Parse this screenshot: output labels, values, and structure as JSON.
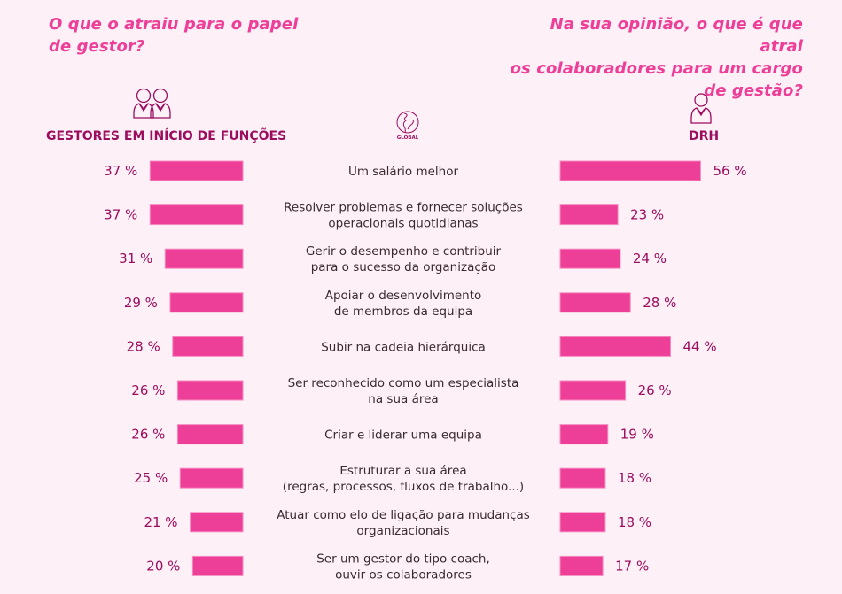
{
  "colors": {
    "background": "#fdf0f7",
    "bar": "#ee3f98",
    "question_text": "#ee3f98",
    "value_text": "#9c0d5e",
    "category_text": "#3a2a30",
    "icon": "#9c0d5e"
  },
  "header": {
    "left_question_lines": [
      "O que o atraiu para o papel",
      "de gestor?"
    ],
    "right_question_lines": [
      "Na sua opinião, o que é que atrai",
      "os colaboradores para um cargo",
      "de gestão?"
    ],
    "left_group": {
      "icon": "two-people-icon",
      "label": "GESTORES EM INÍCIO DE FUNÇÕES"
    },
    "center_group": {
      "icon": "globe-icon",
      "label": "GLOBAL"
    },
    "right_group": {
      "icon": "person-icon",
      "label": "DRH"
    }
  },
  "chart_data": {
    "type": "bar",
    "orientation": "horizontal-butterfly",
    "title": "",
    "xlabel": "",
    "ylabel": "",
    "unit": "%",
    "xlim": [
      0,
      60
    ],
    "grid": false,
    "legend": "none",
    "categories": [
      [
        "Um salário melhor"
      ],
      [
        "Resolver problemas e fornecer soluções",
        "operacionais quotidianas"
      ],
      [
        "Gerir o desempenho e contribuir",
        "para o sucesso da organização"
      ],
      [
        "Apoiar o desenvolvimento",
        "de membros da equipa"
      ],
      [
        "Subir na cadeia hierárquica"
      ],
      [
        "Ser reconhecido como um especialista",
        "na sua área"
      ],
      [
        "Criar e liderar uma equipa"
      ],
      [
        "Estruturar a sua área",
        "(regras, processos, fluxos de trabalho...)"
      ],
      [
        "Atuar como elo de ligação para mudanças",
        "organizacionais"
      ],
      [
        "Ser um gestor do tipo coach,",
        "ouvir os colaboradores"
      ]
    ],
    "series": [
      {
        "name": "GESTORES EM INÍCIO DE FUNÇÕES",
        "side": "left",
        "values": [
          37,
          37,
          31,
          29,
          28,
          26,
          26,
          25,
          21,
          20
        ],
        "labels": [
          "37 %",
          "37 %",
          "31 %",
          "29 %",
          "28 %",
          "26 %",
          "26 %",
          "25 %",
          "21 %",
          "20 %"
        ]
      },
      {
        "name": "DRH",
        "side": "right",
        "values": [
          56,
          23,
          24,
          28,
          44,
          26,
          19,
          18,
          18,
          17
        ],
        "labels": [
          "56 %",
          "23 %",
          "24 %",
          "28 %",
          "44 %",
          "26 %",
          "19 %",
          "18 %",
          "18 %",
          "17 %"
        ]
      }
    ]
  }
}
